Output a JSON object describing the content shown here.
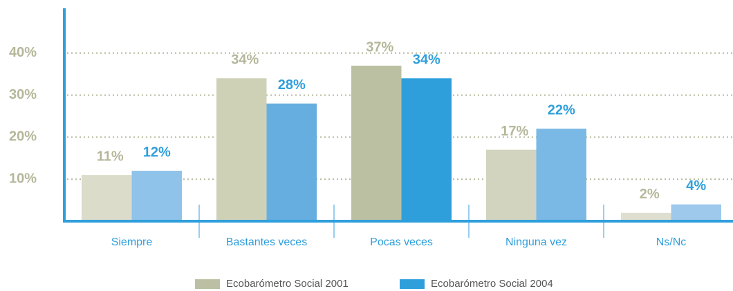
{
  "chart_data": {
    "type": "bar",
    "categories": [
      "Siempre",
      "Bastantes veces",
      "Pocas veces",
      "Ninguna vez",
      "Ns/Nc"
    ],
    "series": [
      {
        "name": "Ecobarómetro Social 2001",
        "color": "#bcbfa3",
        "colors": [
          "#dcdccb",
          "#cfd1b7",
          "#bcc0a2",
          "#d2d4c0",
          "#dedfd0"
        ],
        "label_color": "#b5b79a",
        "values": [
          11,
          34,
          37,
          17,
          2
        ],
        "value_labels": [
          "11%",
          "34%",
          "37%",
          "17%",
          "2%"
        ]
      },
      {
        "name": "Ecobarómetro Social 2004",
        "color": "#2f9fdc",
        "colors": [
          "#8fc3ea",
          "#66aee0",
          "#2f9fdc",
          "#7ab8e6",
          "#9ec9ec"
        ],
        "label_color": "#2f9fdc",
        "values": [
          12,
          28,
          34,
          22,
          4
        ],
        "value_labels": [
          "12%",
          "28%",
          "34%",
          "22%",
          "4%"
        ]
      }
    ],
    "ylim": [
      0,
      50
    ],
    "yticks": [
      {
        "value": 10,
        "label": "10%"
      },
      {
        "value": 20,
        "label": "20%"
      },
      {
        "value": 30,
        "label": "30%"
      },
      {
        "value": 40,
        "label": "40%"
      }
    ],
    "grid": true
  }
}
